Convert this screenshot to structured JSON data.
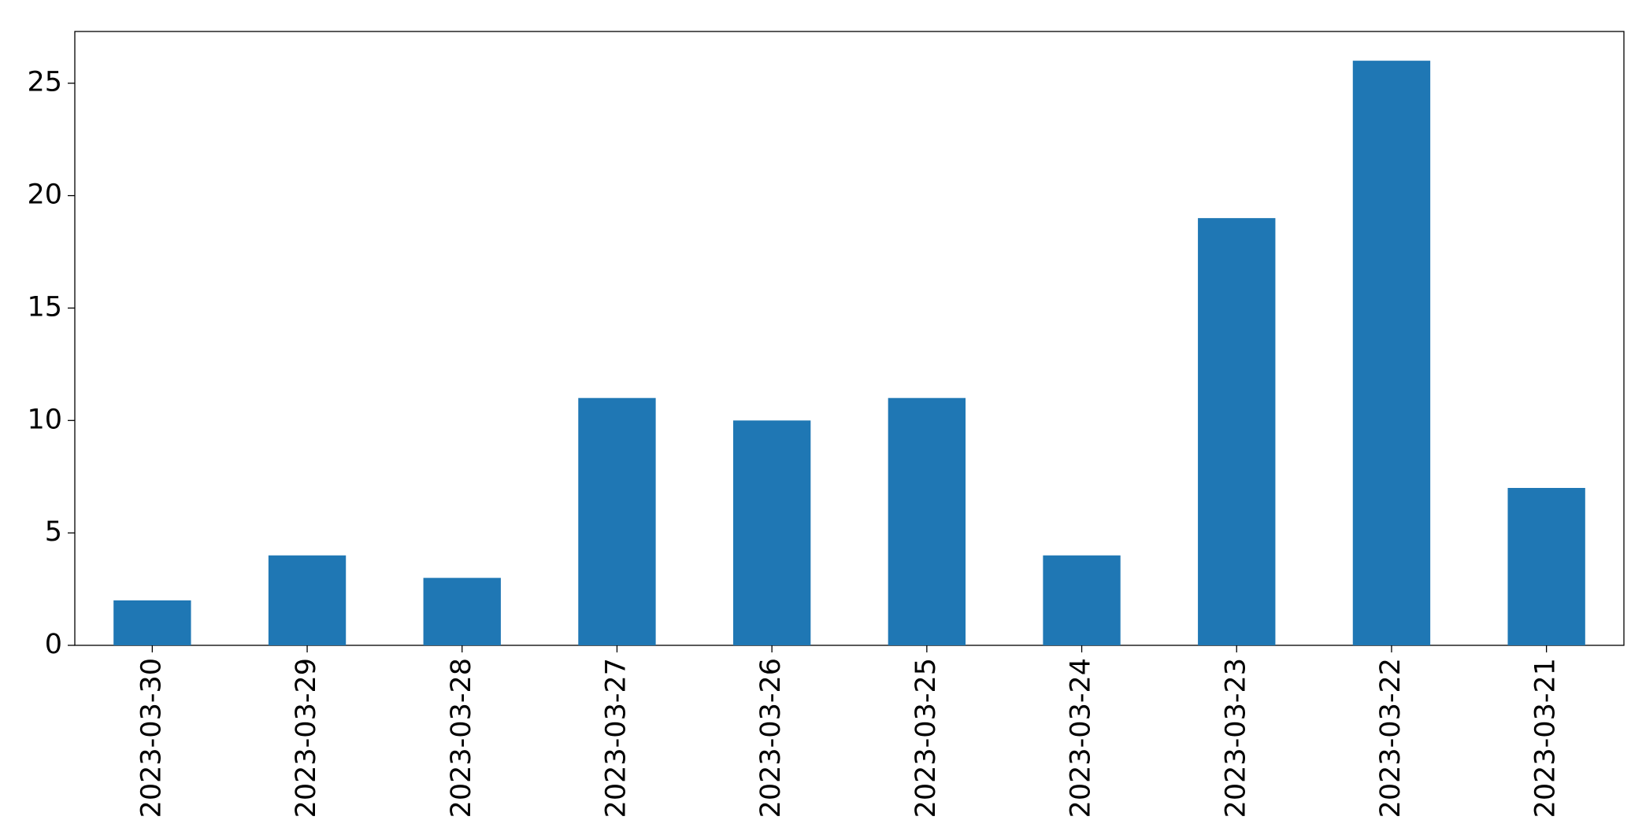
{
  "chart_data": {
    "type": "bar",
    "categories": [
      "2023-03-30",
      "2023-03-29",
      "2023-03-28",
      "2023-03-27",
      "2023-03-26",
      "2023-03-25",
      "2023-03-24",
      "2023-03-23",
      "2023-03-22",
      "2023-03-21"
    ],
    "values": [
      2,
      4,
      3,
      11,
      10,
      11,
      4,
      19,
      26,
      7
    ],
    "color": "#1f77b4",
    "ylim": [
      0,
      27.3
    ],
    "yticks": [
      0,
      5,
      10,
      15,
      20,
      25
    ],
    "grid": false
  }
}
